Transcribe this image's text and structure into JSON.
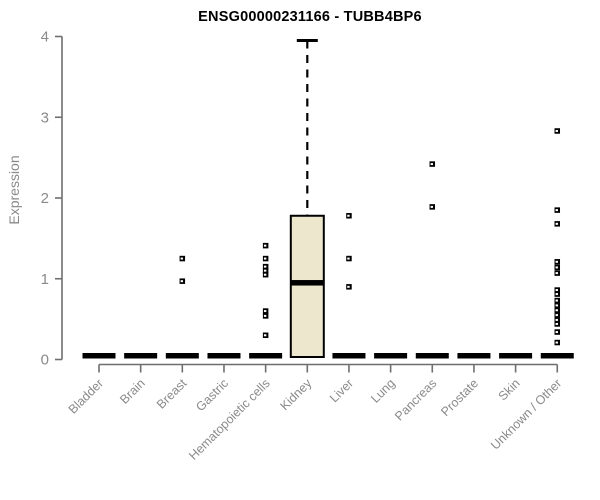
{
  "colors": {
    "background": "#ffffff",
    "axis_line": "#6e6e6e",
    "axis_text": "#8a8a8a",
    "data_color": "#000000",
    "box_fill": "#ece7cd"
  },
  "chart_data": {
    "type": "boxplot",
    "title": "ENSG00000231166 - TUBB4BP6",
    "ylabel": "Expression",
    "xlabel": "",
    "ylim": [
      0,
      4
    ],
    "yticks": [
      0,
      1,
      2,
      3,
      4
    ],
    "grid": "off",
    "legend": "none",
    "categories": [
      "Bladder",
      "Brain",
      "Breast",
      "Gastric",
      "Hematopoietic cells",
      "Kidney",
      "Liver",
      "Lung",
      "Pancreas",
      "Prostate",
      "Skin",
      "Unknown / Other"
    ],
    "boxes": [
      {
        "category": "Bladder",
        "median": 0,
        "q1": 0,
        "q3": 0,
        "whisker_low": 0,
        "whisker_high": 0,
        "outliers": []
      },
      {
        "category": "Brain",
        "median": 0,
        "q1": 0,
        "q3": 0,
        "whisker_low": 0,
        "whisker_high": 0,
        "outliers": []
      },
      {
        "category": "Breast",
        "median": 0,
        "q1": 0,
        "q3": 0,
        "whisker_low": 0,
        "whisker_high": 0,
        "outliers": [
          1.25,
          0.97
        ]
      },
      {
        "category": "Gastric",
        "median": 0,
        "q1": 0,
        "q3": 0,
        "whisker_low": 0,
        "whisker_high": 0,
        "outliers": []
      },
      {
        "category": "Hematopoietic cells",
        "median": 0,
        "q1": 0,
        "q3": 0,
        "whisker_low": 0,
        "whisker_high": 0,
        "outliers": [
          1.41,
          1.25,
          1.15,
          1.1,
          1.05,
          0.6,
          0.54,
          0.3
        ]
      },
      {
        "category": "Kidney",
        "median": 0.95,
        "q1": 0,
        "q3": 1.78,
        "whisker_low": 0,
        "whisker_high": 3.95,
        "outliers": []
      },
      {
        "category": "Liver",
        "median": 0,
        "q1": 0,
        "q3": 0,
        "whisker_low": 0,
        "whisker_high": 0,
        "outliers": [
          1.78,
          1.25,
          0.9
        ]
      },
      {
        "category": "Lung",
        "median": 0,
        "q1": 0,
        "q3": 0,
        "whisker_low": 0,
        "whisker_high": 0,
        "outliers": []
      },
      {
        "category": "Pancreas",
        "median": 0,
        "q1": 0,
        "q3": 0,
        "whisker_low": 0,
        "whisker_high": 0,
        "outliers": [
          2.42,
          1.89
        ]
      },
      {
        "category": "Prostate",
        "median": 0,
        "q1": 0,
        "q3": 0,
        "whisker_low": 0,
        "whisker_high": 0,
        "outliers": []
      },
      {
        "category": "Skin",
        "median": 0,
        "q1": 0,
        "q3": 0,
        "whisker_low": 0,
        "whisker_high": 0,
        "outliers": []
      },
      {
        "category": "Unknown / Other",
        "median": 0,
        "q1": 0,
        "q3": 0,
        "whisker_low": 0,
        "whisker_high": 0,
        "outliers": [
          2.83,
          1.85,
          1.68,
          1.21,
          1.14,
          1.07,
          0.86,
          0.81,
          0.73,
          0.67,
          0.61,
          0.55,
          0.49,
          0.44,
          0.34,
          0.21
        ]
      }
    ]
  }
}
